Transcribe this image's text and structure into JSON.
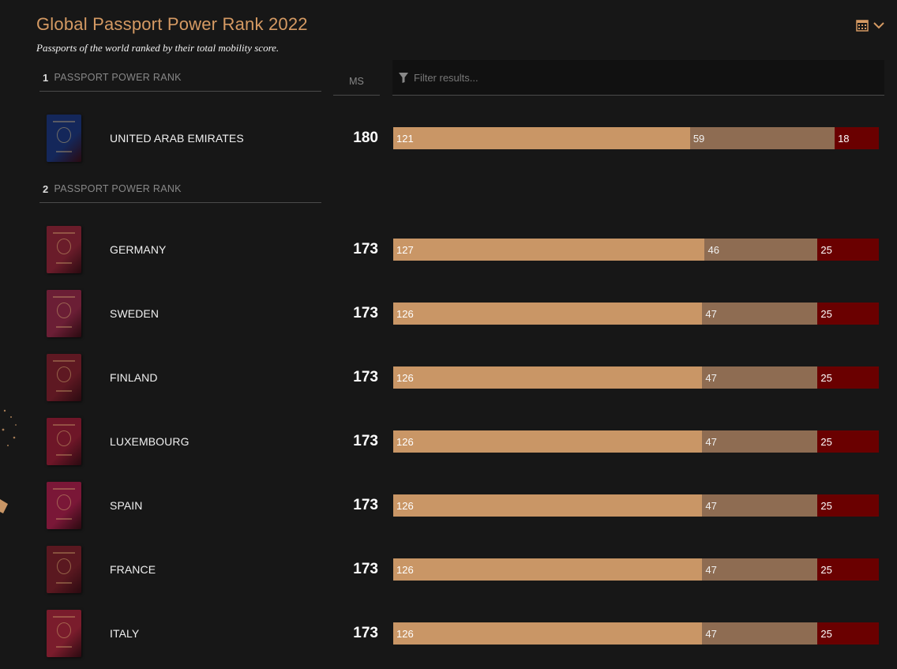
{
  "header": {
    "title": "Global Passport Power Rank 2022",
    "subtitle": "Passports of the world ranked by their total mobility score."
  },
  "colors": {
    "accent": "#d59a63",
    "visa_free": "#c99666",
    "visa_on_arrival": "#8e6c52",
    "visa_required": "#6a0000",
    "background": "#171717"
  },
  "icons": {
    "calendar": "calendar-icon",
    "chevron": "chevron-down-icon",
    "filter": "filter-icon"
  },
  "columns": {
    "ms_label": "MS"
  },
  "filter": {
    "placeholder": "Filter results..."
  },
  "groups": [
    {
      "rank": "1",
      "label": "PASSPORT POWER RANK",
      "rows": [
        {
          "country": "UNITED ARAB EMIRATES",
          "ms": "180",
          "segments": [
            "121",
            "59",
            "18"
          ],
          "passport_color": "#14275a"
        }
      ]
    },
    {
      "rank": "2",
      "label": "PASSPORT POWER RANK",
      "rows": [
        {
          "country": "GERMANY",
          "ms": "173",
          "segments": [
            "127",
            "46",
            "25"
          ],
          "passport_color": "#6a1c2a"
        },
        {
          "country": "SWEDEN",
          "ms": "173",
          "segments": [
            "126",
            "47",
            "25"
          ],
          "passport_color": "#6b1e35"
        },
        {
          "country": "FINLAND",
          "ms": "173",
          "segments": [
            "126",
            "47",
            "25"
          ],
          "passport_color": "#5e1822"
        },
        {
          "country": "LUXEMBOURG",
          "ms": "173",
          "segments": [
            "126",
            "47",
            "25"
          ],
          "passport_color": "#6e1628"
        },
        {
          "country": "SPAIN",
          "ms": "173",
          "segments": [
            "126",
            "47",
            "25"
          ],
          "passport_color": "#7a1737"
        },
        {
          "country": "FRANCE",
          "ms": "173",
          "segments": [
            "126",
            "47",
            "25"
          ],
          "passport_color": "#5a1820"
        },
        {
          "country": "ITALY",
          "ms": "173",
          "segments": [
            "126",
            "47",
            "25"
          ],
          "passport_color": "#7a1c2c"
        }
      ]
    }
  ]
}
